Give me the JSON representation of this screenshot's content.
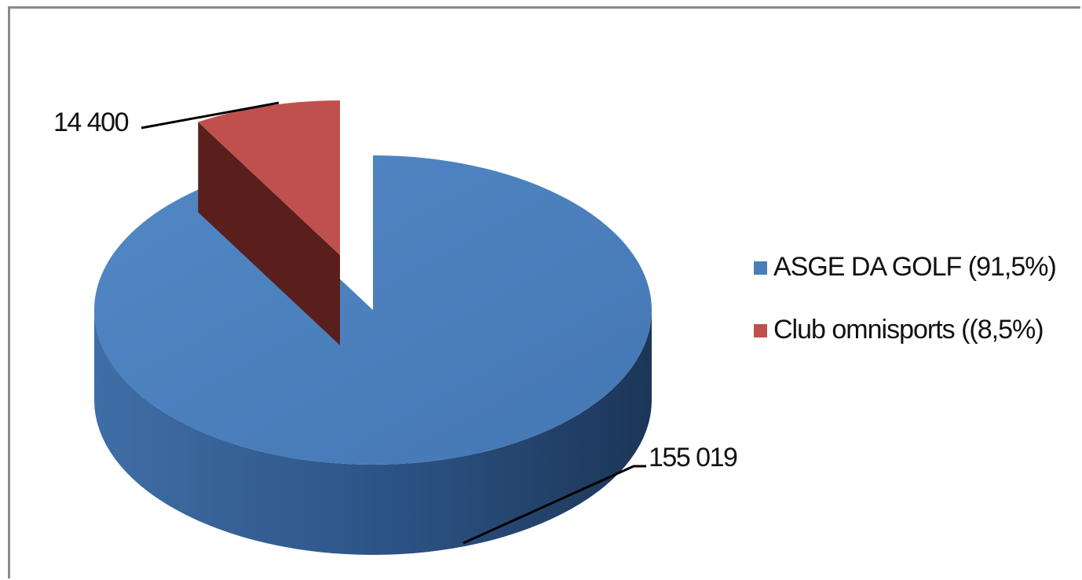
{
  "chart_data": {
    "type": "pie",
    "variant": "3d-exploded",
    "title": "",
    "slices": [
      {
        "label": "ASGE DA GOLF (91,5%)",
        "value": 155019,
        "value_label": "155 019",
        "color": "#4a7ebb",
        "exploded": false
      },
      {
        "label": "Club omnisports ((8,5%)",
        "value": 14400,
        "value_label": "14 400",
        "color": "#c0504d",
        "exploded": true
      }
    ],
    "legend_position": "right"
  }
}
